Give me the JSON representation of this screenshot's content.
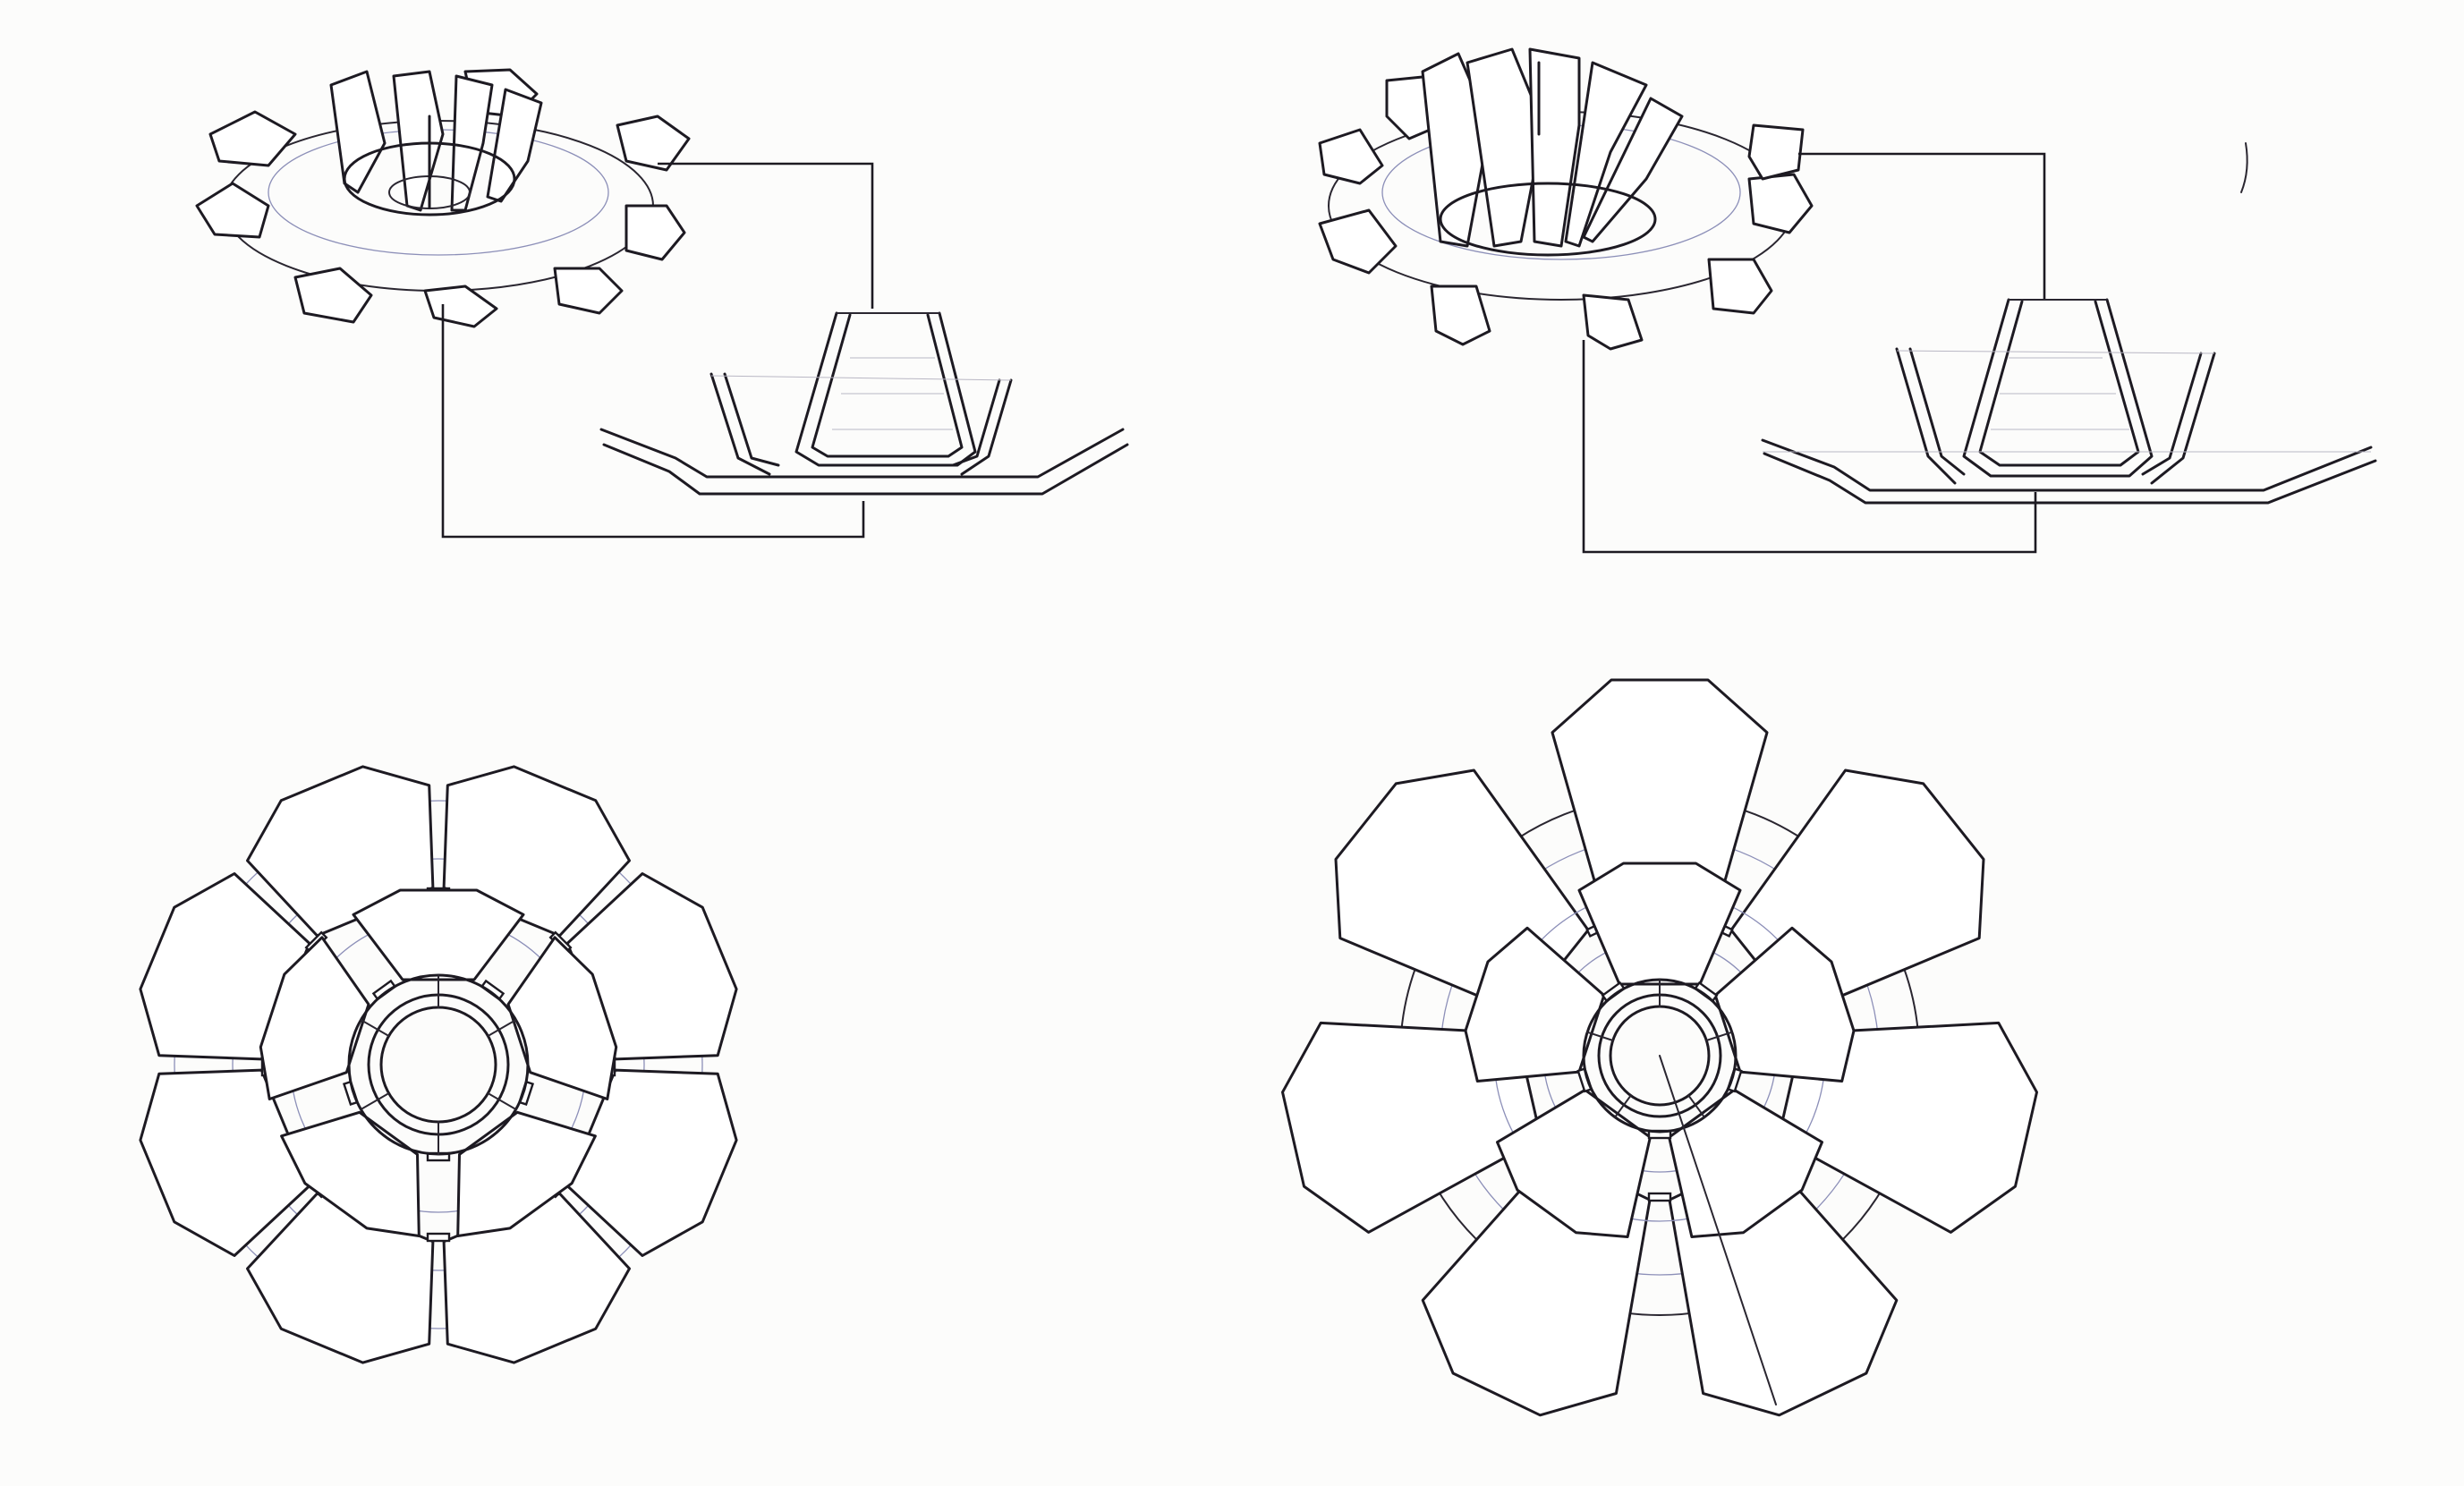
{
  "sheet": {
    "paper_color": "#fcfcfb",
    "ink_color": "#1d1a22",
    "guide_color": "#8c8fb8"
  },
  "sketches": [
    {
      "id": "perspective-left",
      "view": "perspective",
      "outer_petals": 8,
      "inner_petals": 5
    },
    {
      "id": "section-left",
      "view": "section"
    },
    {
      "id": "perspective-right",
      "view": "perspective",
      "outer_petals": 8,
      "inner_petals": 5
    },
    {
      "id": "section-right",
      "view": "section"
    },
    {
      "id": "top-view-left",
      "view": "top",
      "outer_petals": 8,
      "inner_petals": 5
    },
    {
      "id": "top-view-right",
      "view": "top",
      "outer_petals": 7,
      "inner_petals": 5
    }
  ]
}
